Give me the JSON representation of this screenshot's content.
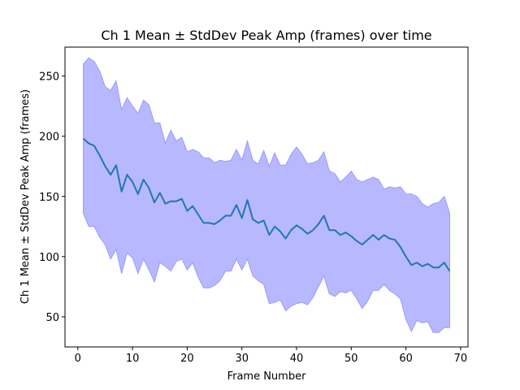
{
  "chart_data": {
    "type": "line",
    "title": "Ch 1 Mean ± StdDev Peak Amp (frames) over time",
    "xlabel": "Frame Number",
    "ylabel": "Ch 1 Mean ± StdDev Peak Amp (frames)",
    "xlim": [
      -2.35,
      71.35
    ],
    "ylim": [
      25,
      274
    ],
    "xticks": [
      0,
      10,
      20,
      30,
      40,
      50,
      60,
      70
    ],
    "yticks": [
      50,
      100,
      150,
      200,
      250
    ],
    "grid": false,
    "legend": "none",
    "x": [
      1,
      2,
      3,
      4,
      5,
      6,
      7,
      8,
      9,
      10,
      11,
      12,
      13,
      14,
      15,
      16,
      17,
      18,
      19,
      20,
      21,
      22,
      23,
      24,
      25,
      26,
      27,
      28,
      29,
      30,
      31,
      32,
      33,
      34,
      35,
      36,
      37,
      38,
      39,
      40,
      41,
      42,
      43,
      44,
      45,
      46,
      47,
      48,
      49,
      50,
      51,
      52,
      53,
      54,
      55,
      56,
      57,
      58,
      59,
      60,
      61,
      62,
      63,
      64,
      65,
      66,
      67,
      68
    ],
    "series": [
      {
        "role": "mean",
        "color": "#1f77b4",
        "values": [
          198,
          194,
          192,
          184,
          175,
          168,
          176,
          154,
          168,
          162,
          152,
          164,
          157,
          145,
          153,
          144,
          146,
          146,
          148,
          138,
          142,
          135,
          128,
          128,
          127,
          130,
          134,
          134,
          143,
          132,
          147,
          131,
          128,
          130,
          118,
          125,
          121,
          115,
          122,
          126,
          123,
          119,
          122,
          127,
          134,
          122,
          122,
          118,
          120,
          117,
          113,
          110,
          114,
          118,
          114,
          118,
          115,
          114,
          108,
          100,
          93,
          95,
          92,
          94,
          91,
          91,
          95,
          88
        ]
      },
      {
        "role": "upper",
        "values": [
          260,
          265,
          262,
          254,
          241,
          238,
          246,
          222,
          232,
          225,
          219,
          230,
          226,
          211,
          211,
          194,
          205,
          196,
          199,
          187,
          189,
          187,
          182,
          182,
          178,
          180,
          179,
          180,
          189,
          180,
          196,
          180,
          177,
          188,
          175,
          186,
          176,
          176,
          185,
          191,
          185,
          177,
          178,
          180,
          187,
          171,
          169,
          162,
          166,
          171,
          164,
          162,
          164,
          166,
          164,
          156,
          158,
          157,
          158,
          152,
          152,
          150,
          144,
          141,
          144,
          145,
          150,
          136
        ]
      },
      {
        "role": "lower",
        "values": [
          136,
          125,
          125,
          116,
          110,
          98,
          106,
          86,
          103,
          99,
          86,
          98,
          89,
          79,
          95,
          92,
          88,
          96,
          98,
          89,
          95,
          83,
          74,
          74,
          76,
          80,
          88,
          88,
          98,
          89,
          98,
          84,
          80,
          77,
          61,
          62,
          64,
          55,
          59,
          61,
          62,
          60,
          66,
          75,
          84,
          69,
          67,
          71,
          70,
          72,
          65,
          57,
          63,
          72,
          72,
          77,
          72,
          69,
          65,
          48,
          38,
          47,
          45,
          46,
          37,
          37,
          41,
          41
        ]
      }
    ],
    "colors": {
      "band_fill": "#b8b8ff",
      "band_edge": "#9a9aff",
      "mean_line": "#1f77b4"
    }
  }
}
